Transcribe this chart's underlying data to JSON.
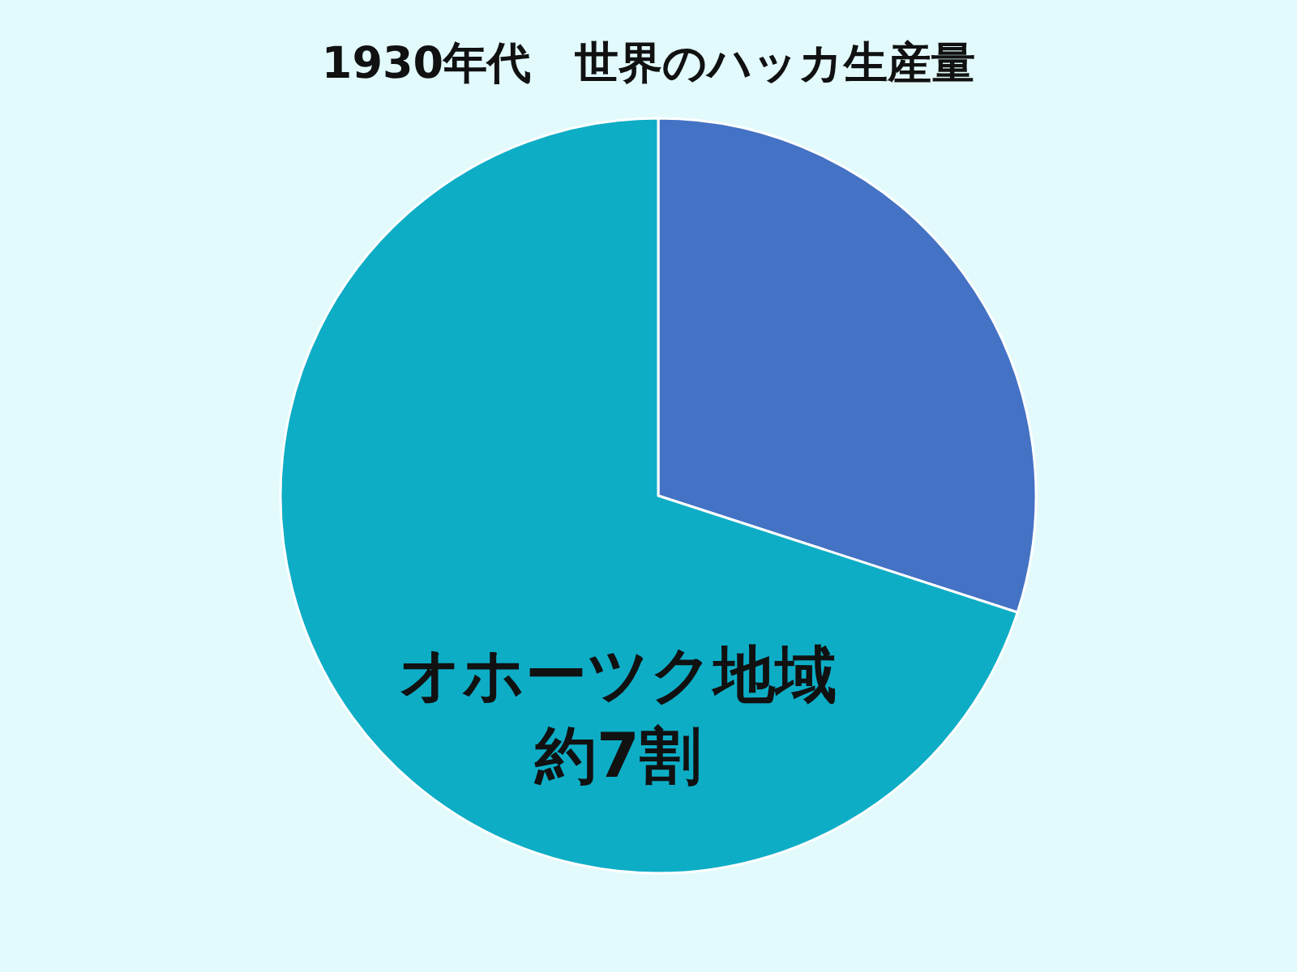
{
  "chart_data": {
    "type": "pie",
    "title": "1930年代　世界のハッカ生産量",
    "categories": [
      null,
      "オホーツク地域"
    ],
    "values": [
      30,
      70
    ],
    "colors": [
      "#4472c4",
      "#0eadc6"
    ],
    "value_labels": [
      null,
      "約7割"
    ]
  }
}
